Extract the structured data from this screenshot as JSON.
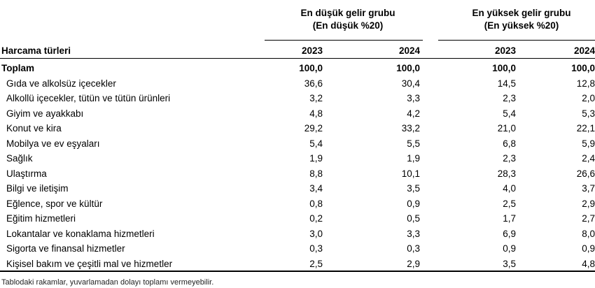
{
  "table": {
    "group_low": {
      "title": "En düşük gelir grubu",
      "subtitle": "(En düşük %20)"
    },
    "group_high": {
      "title": "En yüksek gelir grubu",
      "subtitle": "(En yüksek %20)"
    },
    "label_header": "Harcama türleri",
    "years": [
      "2023",
      "2024",
      "2023",
      "2024"
    ],
    "rows": [
      {
        "label": "Toplam",
        "values": [
          "100,0",
          "100,0",
          "100,0",
          "100,0"
        ]
      },
      {
        "label": "Gıda ve alkolsüz içecekler",
        "values": [
          "36,6",
          "30,4",
          "14,5",
          "12,8"
        ]
      },
      {
        "label": "Alkollü içecekler, tütün ve tütün ürünleri",
        "values": [
          "3,2",
          "3,3",
          "2,3",
          "2,0"
        ]
      },
      {
        "label": "Giyim ve ayakkabı",
        "values": [
          "4,8",
          "4,2",
          "5,4",
          "5,3"
        ]
      },
      {
        "label": "Konut ve kira",
        "values": [
          "29,2",
          "33,2",
          "21,0",
          "22,1"
        ]
      },
      {
        "label": "Mobilya ve ev eşyaları",
        "values": [
          "5,4",
          "5,5",
          "6,8",
          "5,9"
        ]
      },
      {
        "label": "Sağlık",
        "values": [
          "1,9",
          "1,9",
          "2,3",
          "2,4"
        ]
      },
      {
        "label": "Ulaştırma",
        "values": [
          "8,8",
          "10,1",
          "28,3",
          "26,6"
        ]
      },
      {
        "label": "Bilgi ve iletişim",
        "values": [
          "3,4",
          "3,5",
          "4,0",
          "3,7"
        ]
      },
      {
        "label": "Eğlence, spor ve kültür",
        "values": [
          "0,8",
          "0,9",
          "2,5",
          "2,9"
        ]
      },
      {
        "label": "Eğitim hizmetleri",
        "values": [
          "0,2",
          "0,5",
          "1,7",
          "2,7"
        ]
      },
      {
        "label": "Lokantalar ve konaklama hizmetleri",
        "values": [
          "3,0",
          "3,3",
          "6,9",
          "8,0"
        ]
      },
      {
        "label": "Sigorta ve finansal hizmetler",
        "values": [
          "0,3",
          "0,3",
          "0,9",
          "0,9"
        ]
      },
      {
        "label": "Kişisel bakım ve çeşitli mal ve hizmetler",
        "values": [
          "2,5",
          "2,9",
          "3,5",
          "4,8"
        ]
      }
    ],
    "footnote": "Tablodaki rakamlar, yuvarlamadan dolayı toplamı vermeyebilir."
  }
}
